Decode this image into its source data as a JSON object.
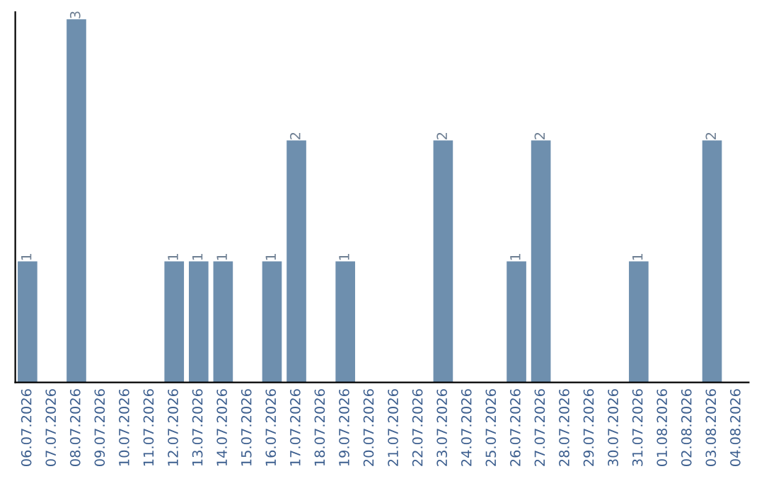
{
  "chart_data": {
    "type": "bar",
    "categories": [
      "06.07.2026",
      "07.07.2026",
      "08.07.2026",
      "09.07.2026",
      "10.07.2026",
      "11.07.2026",
      "12.07.2026",
      "13.07.2026",
      "14.07.2026",
      "15.07.2026",
      "16.07.2026",
      "17.07.2026",
      "18.07.2026",
      "19.07.2026",
      "20.07.2026",
      "21.07.2026",
      "22.07.2026",
      "23.07.2026",
      "24.07.2026",
      "25.07.2026",
      "26.07.2026",
      "27.07.2026",
      "28.07.2026",
      "29.07.2026",
      "30.07.2026",
      "31.07.2026",
      "01.08.2026",
      "02.08.2026",
      "03.08.2026",
      "04.08.2026"
    ],
    "values": [
      1,
      0,
      3,
      0,
      0,
      0,
      1,
      1,
      1,
      0,
      1,
      2,
      0,
      1,
      0,
      0,
      0,
      2,
      0,
      0,
      1,
      2,
      0,
      0,
      0,
      1,
      0,
      0,
      2,
      0
    ],
    "value_labels": [
      "1",
      null,
      "3",
      null,
      null,
      null,
      "1",
      "1",
      "1",
      null,
      "1",
      "2",
      null,
      "1",
      null,
      null,
      null,
      "2",
      null,
      null,
      "1",
      "2",
      null,
      null,
      null,
      "1",
      null,
      null,
      "2",
      null
    ],
    "color": "#6e8fae",
    "tick_labels": "x",
    "grid": false,
    "legend": false
  }
}
